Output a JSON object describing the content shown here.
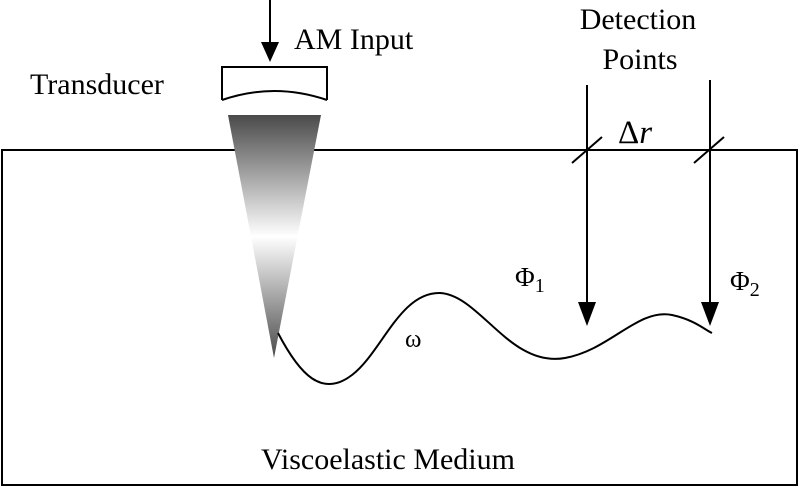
{
  "labels": {
    "am_input": "AM Input",
    "transducer": "Transducer",
    "detection_line1": "Detection",
    "detection_line2": "Points",
    "delta_r_symbol": "Δ",
    "delta_r_var": "r",
    "phi1": "Φ",
    "phi1_sub": "1",
    "phi2": "Φ",
    "phi2_sub": "2",
    "omega": "ω",
    "medium": "Viscoelastic Medium"
  },
  "colors": {
    "line": "#000000",
    "background": "#ffffff",
    "beam_dark": "#4a4a4a",
    "beam_light": "#ffffff"
  }
}
